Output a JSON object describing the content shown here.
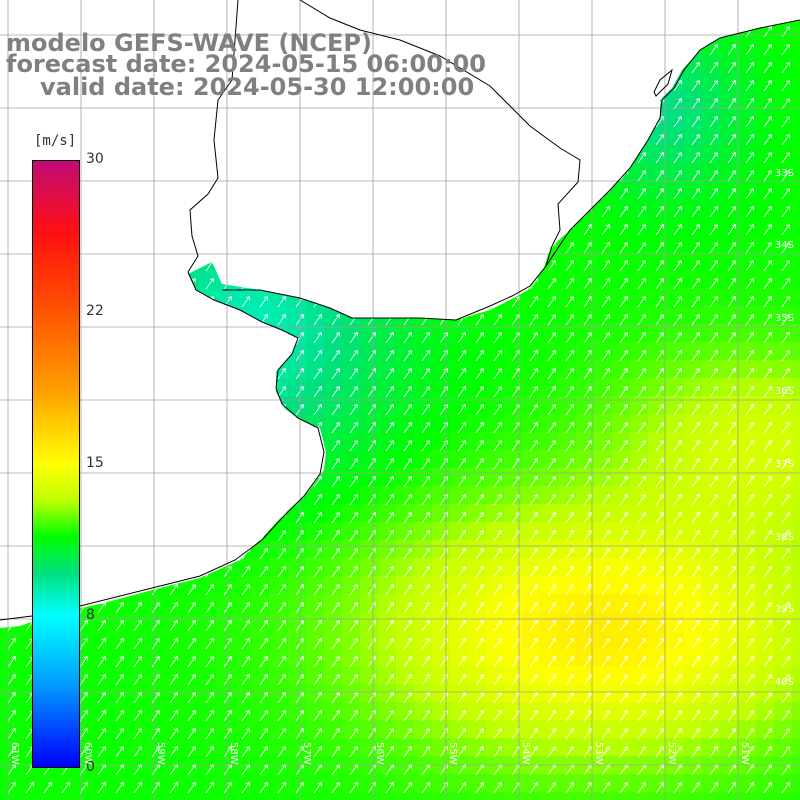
{
  "title": {
    "line1": "modelo GEFS-WAVE (NCEP)",
    "line2": "forecast date: 2024-05-15 06:00:00",
    "line3": "valid date: 2024-05-30 12:00:00"
  },
  "colorbar": {
    "unit": "[m/s]",
    "ticks": [
      "30",
      "22",
      "15",
      "8",
      "0"
    ],
    "min": 0,
    "max": 30,
    "colors": [
      "#0000ff",
      "#00a0ff",
      "#00ffff",
      "#00e080",
      "#00ff00",
      "#bfff00",
      "#ffff00",
      "#ffa000",
      "#ff5a00",
      "#ff1010",
      "#c20a78"
    ]
  },
  "latitude_labels": [
    "33S",
    "34S",
    "35S",
    "36S",
    "37S",
    "38S",
    "39S",
    "40S"
  ],
  "longitude_labels": [
    "61W",
    "60W",
    "59W",
    "58W",
    "57W",
    "56W",
    "55W",
    "54W",
    "53W",
    "52W",
    "51W"
  ],
  "map": {
    "region": "Río de la Plata / Uruguay / Buenos Aires coast",
    "field": "wind speed with direction arrows",
    "land_color": "#ffffff",
    "grid_color": "#a0a0a0",
    "coast_color": "#000000",
    "arrow_color": "#ffffff",
    "dominant_direction": "toward north-east"
  }
}
